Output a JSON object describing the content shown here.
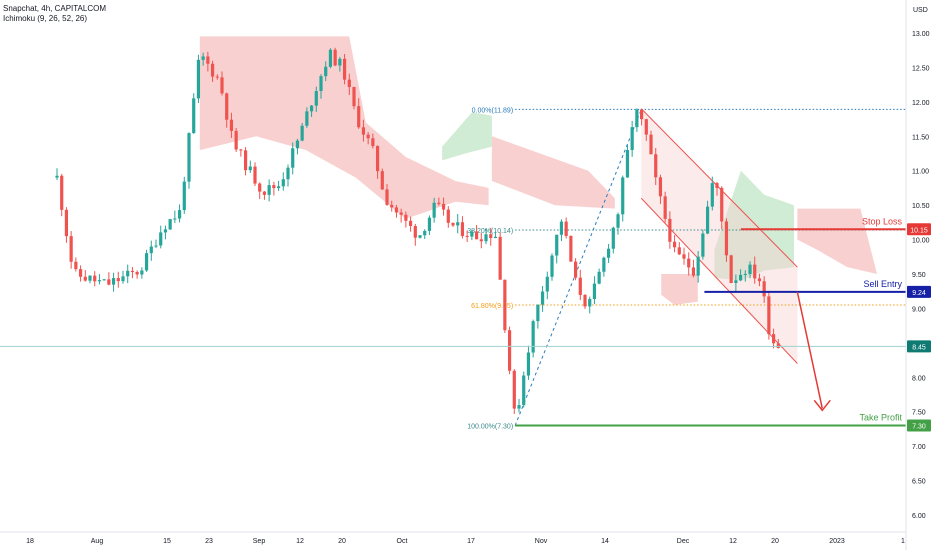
{
  "legend": {
    "symbol_line": "Snapchat, 4h, CAPITALCOM",
    "indicator_line": "Ichimoku (9, 26, 52, 26)"
  },
  "currency": "USD",
  "colors": {
    "up": "#26a69a",
    "down": "#ef5350",
    "cloud_bear": "#f8c8c8",
    "cloud_bull": "#c9e9cc",
    "stop": "#e53935",
    "entry": "#1520a6",
    "profit": "#43a047",
    "current": "#0f7a72"
  },
  "chart_data": {
    "type": "candlestick",
    "symbol": "Snapchat",
    "timeframe": "4h",
    "source": "CAPITALCOM",
    "ylim": [
      5.9,
      13.25
    ],
    "y_ticks": [
      "13.00",
      "12.50",
      "12.00",
      "11.50",
      "11.00",
      "10.50",
      "10.00",
      "9.50",
      "9.00",
      "8.50",
      "8.00",
      "7.50",
      "7.00",
      "6.50",
      "6.00"
    ],
    "x_ticks": [
      "18",
      "Aug",
      "15",
      "23",
      "Sep",
      "12",
      "20",
      "Oct",
      "17",
      "Nov",
      "14",
      "Dec",
      "12",
      "20",
      "2023",
      "1"
    ],
    "close_path": [
      [
        0.0,
        10.9
      ],
      [
        0.5,
        9.5
      ],
      [
        1.5,
        9.35
      ],
      [
        2.5,
        9.55
      ],
      [
        3.2,
        10.2
      ],
      [
        3.7,
        10.4
      ],
      [
        4.3,
        12.7
      ],
      [
        4.9,
        12.3
      ],
      [
        5.3,
        11.4
      ],
      [
        5.8,
        11.0
      ],
      [
        6.2,
        10.7
      ],
      [
        6.7,
        10.8
      ],
      [
        7.3,
        11.5
      ],
      [
        7.8,
        12.2
      ],
      [
        8.2,
        12.7
      ],
      [
        8.6,
        12.5
      ],
      [
        9.0,
        11.8
      ],
      [
        9.5,
        11.3
      ],
      [
        9.9,
        10.6
      ],
      [
        10.4,
        10.3
      ],
      [
        10.9,
        10.05
      ],
      [
        11.4,
        10.5
      ],
      [
        11.9,
        10.2
      ],
      [
        12.6,
        10.05
      ],
      [
        13.2,
        10.1
      ],
      [
        13.8,
        7.35
      ],
      [
        14.3,
        8.7
      ],
      [
        14.8,
        9.6
      ],
      [
        15.2,
        10.3
      ],
      [
        15.6,
        9.4
      ],
      [
        16.0,
        9.0
      ],
      [
        16.4,
        9.6
      ],
      [
        16.9,
        10.4
      ],
      [
        17.4,
        11.9
      ],
      [
        17.7,
        11.6
      ],
      [
        18.1,
        10.7
      ],
      [
        18.6,
        9.8
      ],
      [
        19.2,
        9.55
      ],
      [
        19.8,
        10.95
      ],
      [
        20.3,
        9.4
      ],
      [
        20.8,
        9.6
      ],
      [
        21.2,
        9.4
      ],
      [
        21.5,
        8.55
      ],
      [
        21.8,
        8.45
      ]
    ],
    "levels": [
      {
        "label": "Stop Loss",
        "value": 10.15
      },
      {
        "label": "Sell Entry",
        "value": 9.24
      },
      {
        "label": "Take Profit",
        "value": 7.3
      }
    ],
    "current_price": 8.45,
    "price_labels": [
      "10.15",
      "9.24",
      "8.45",
      "7.30"
    ],
    "fibonacci": [
      {
        "ratio": "0.00%",
        "value": 11.89,
        "label": "0.00%(11.89)"
      },
      {
        "ratio": "38.20%",
        "value": 10.14,
        "label": "38.20%(10.14)"
      },
      {
        "ratio": "61.80%",
        "value": 9.05,
        "label": "61.80%(9.05)"
      },
      {
        "ratio": "100.00%",
        "value": 7.3,
        "label": "100.00%(7.30)"
      }
    ],
    "cloud_bear": [
      [
        [
          4.3,
          12.95
        ],
        [
          8.8,
          12.95
        ],
        [
          9.3,
          11.7
        ],
        [
          10.5,
          11.2
        ],
        [
          12.0,
          10.85
        ],
        [
          13.0,
          10.75
        ],
        [
          13.0,
          10.5
        ],
        [
          12.0,
          10.55
        ],
        [
          10.5,
          10.3
        ],
        [
          9.0,
          10.9
        ],
        [
          7.5,
          11.3
        ],
        [
          6.0,
          11.5
        ],
        [
          4.3,
          11.3
        ]
      ],
      [
        [
          13.1,
          11.5
        ],
        [
          16.0,
          11.0
        ],
        [
          16.8,
          10.6
        ],
        [
          16.8,
          10.45
        ],
        [
          15.0,
          10.5
        ],
        [
          13.1,
          10.85
        ]
      ],
      [
        [
          18.2,
          9.5
        ],
        [
          19.3,
          9.5
        ],
        [
          19.3,
          9.1
        ],
        [
          18.6,
          9.05
        ],
        [
          18.2,
          9.2
        ]
      ],
      [
        [
          22.3,
          10.45
        ],
        [
          24.2,
          10.45
        ],
        [
          24.7,
          9.5
        ],
        [
          23.8,
          9.6
        ],
        [
          22.9,
          9.85
        ],
        [
          22.3,
          10.0
        ]
      ]
    ],
    "cloud_bull": [
      [
        [
          11.6,
          11.35
        ],
        [
          12.5,
          11.85
        ],
        [
          13.1,
          11.8
        ],
        [
          13.1,
          11.35
        ],
        [
          12.3,
          11.25
        ],
        [
          11.6,
          11.15
        ]
      ],
      [
        [
          19.8,
          9.85
        ],
        [
          20.6,
          11.0
        ],
        [
          21.3,
          10.65
        ],
        [
          22.2,
          10.5
        ],
        [
          22.2,
          9.6
        ],
        [
          21.3,
          9.55
        ],
        [
          20.6,
          9.4
        ],
        [
          19.8,
          9.45
        ]
      ]
    ],
    "channel": {
      "upper": [
        [
          17.6,
          11.9
        ],
        [
          22.3,
          9.6
        ]
      ],
      "lower": [
        [
          17.6,
          10.6
        ],
        [
          22.3,
          8.2
        ]
      ]
    },
    "projection": [
      [
        22.3,
        9.24
      ],
      [
        23.05,
        7.55
      ]
    ]
  }
}
